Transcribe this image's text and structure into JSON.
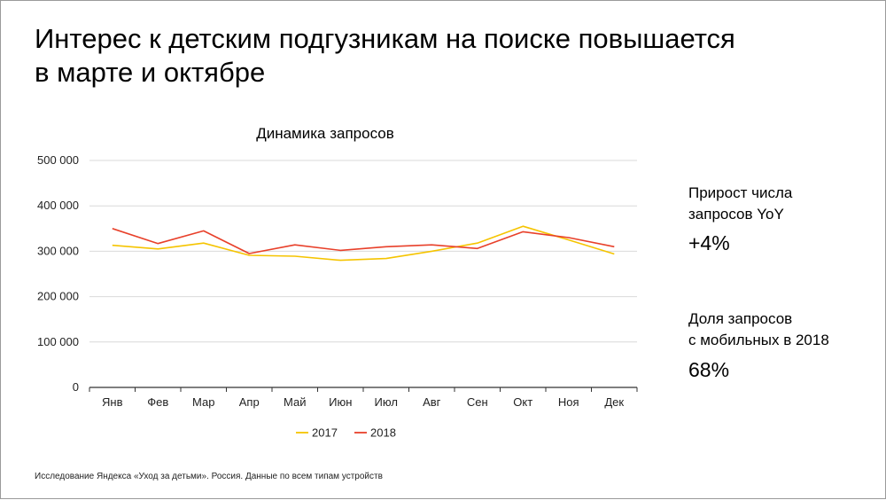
{
  "title_line1": "Интерес к детским подгузникам на поиске повышается",
  "title_line2": "в марте и октябре",
  "chart_data": {
    "type": "line",
    "title": "Динамика запросов",
    "categories": [
      "Янв",
      "Фев",
      "Мар",
      "Апр",
      "Май",
      "Июн",
      "Июл",
      "Авг",
      "Сен",
      "Окт",
      "Ноя",
      "Дек"
    ],
    "series": [
      {
        "name": "2017",
        "color": "#f5c400",
        "values": [
          313000,
          305000,
          318000,
          291000,
          289000,
          280000,
          284000,
          300000,
          318000,
          355000,
          325000,
          294000
        ]
      },
      {
        "name": "2018",
        "color": "#e8402a",
        "values": [
          350000,
          317000,
          345000,
          295000,
          314000,
          302000,
          310000,
          314000,
          306000,
          343000,
          330000,
          310000
        ]
      }
    ],
    "ylim": [
      0,
      500000
    ],
    "yticks": [
      0,
      100000,
      200000,
      300000,
      400000,
      500000
    ],
    "ytick_labels": [
      "0",
      "100 000",
      "200 000",
      "300 000",
      "400 000",
      "500 000"
    ],
    "grid": true,
    "legend_position": "bottom"
  },
  "stats": {
    "growth_label_line1": "Прирост числа",
    "growth_label_line2": "запросов YoY",
    "growth_value": "+4%",
    "mobile_label_line1": "Доля запросов",
    "mobile_label_line2": "с мобильных в 2018",
    "mobile_value": "68%"
  },
  "footnote": "Исследование Яндекса «Уход за детьми». Россия. Данные по всем типам устройств"
}
